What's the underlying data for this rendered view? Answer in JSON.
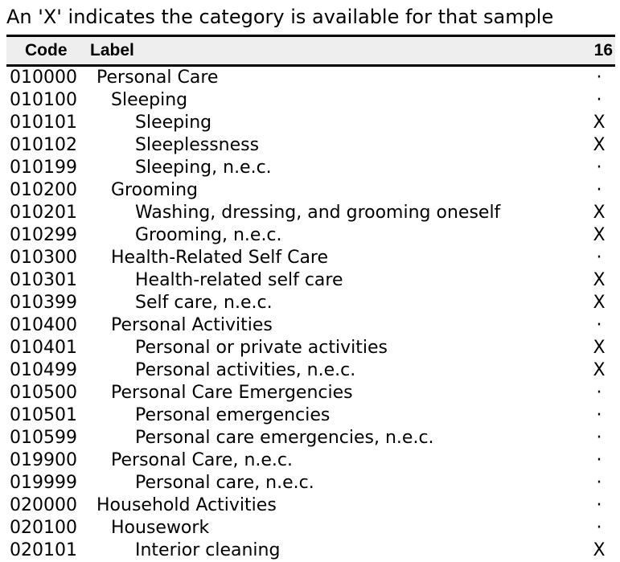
{
  "note": "An 'X' indicates the category is available for that sample",
  "header": {
    "code": "Code",
    "label": "Label",
    "sample": "16"
  },
  "rows": [
    {
      "code": "010000",
      "label": "Personal Care",
      "level": 0,
      "avail": "·"
    },
    {
      "code": "010100",
      "label": "Sleeping",
      "level": 1,
      "avail": "·"
    },
    {
      "code": "010101",
      "label": "Sleeping",
      "level": 2,
      "avail": "X"
    },
    {
      "code": "010102",
      "label": "Sleeplessness",
      "level": 2,
      "avail": "X"
    },
    {
      "code": "010199",
      "label": "Sleeping, n.e.c.",
      "level": 2,
      "avail": "·"
    },
    {
      "code": "010200",
      "label": "Grooming",
      "level": 1,
      "avail": "·"
    },
    {
      "code": "010201",
      "label": "Washing, dressing, and grooming oneself",
      "level": 2,
      "avail": "X"
    },
    {
      "code": "010299",
      "label": "Grooming, n.e.c.",
      "level": 2,
      "avail": "X"
    },
    {
      "code": "010300",
      "label": "Health-Related Self Care",
      "level": 1,
      "avail": "·"
    },
    {
      "code": "010301",
      "label": "Health-related self care",
      "level": 2,
      "avail": "X"
    },
    {
      "code": "010399",
      "label": "Self care, n.e.c.",
      "level": 2,
      "avail": "X"
    },
    {
      "code": "010400",
      "label": "Personal Activities",
      "level": 1,
      "avail": "·"
    },
    {
      "code": "010401",
      "label": "Personal or private activities",
      "level": 2,
      "avail": "X"
    },
    {
      "code": "010499",
      "label": "Personal activities, n.e.c.",
      "level": 2,
      "avail": "X"
    },
    {
      "code": "010500",
      "label": "Personal Care Emergencies",
      "level": 1,
      "avail": "·"
    },
    {
      "code": "010501",
      "label": "Personal emergencies",
      "level": 2,
      "avail": "·"
    },
    {
      "code": "010599",
      "label": "Personal care emergencies, n.e.c.",
      "level": 2,
      "avail": "·"
    },
    {
      "code": "019900",
      "label": "Personal Care, n.e.c.",
      "level": 1,
      "avail": "·"
    },
    {
      "code": "019999",
      "label": "Personal care, n.e.c.",
      "level": 2,
      "avail": "·"
    },
    {
      "code": "020000",
      "label": "Household Activities",
      "level": 0,
      "avail": "·"
    },
    {
      "code": "020100",
      "label": "Housework",
      "level": 1,
      "avail": "·"
    },
    {
      "code": "020101",
      "label": "Interior cleaning",
      "level": 2,
      "avail": "X"
    }
  ]
}
